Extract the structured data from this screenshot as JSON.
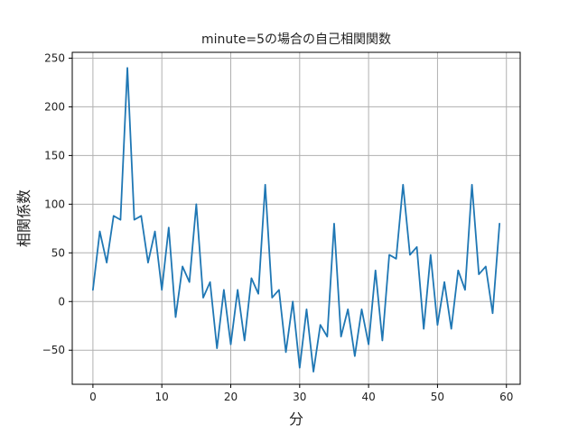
{
  "chart_data": {
    "type": "line",
    "title": "minute=5の場合の自己相関関数",
    "xlabel": "分",
    "ylabel": "相関係数",
    "xlim": [
      -3,
      62
    ],
    "ylim": [
      -85,
      256
    ],
    "xticks": [
      0,
      10,
      20,
      30,
      40,
      50,
      60
    ],
    "yticks": [
      -50,
      0,
      50,
      100,
      150,
      200,
      250
    ],
    "grid": true,
    "line_color": "#1f77b4",
    "series": [
      {
        "x": [
          0,
          1,
          2,
          3,
          4,
          5,
          6,
          7,
          8,
          9,
          10,
          11,
          12,
          13,
          14,
          15,
          16,
          17,
          18,
          19,
          20,
          21,
          22,
          23,
          24,
          25,
          26,
          27,
          28,
          29,
          30,
          31,
          32,
          33,
          34,
          35,
          36,
          37,
          38,
          39,
          40,
          41,
          42,
          43,
          44,
          45,
          46,
          47,
          48,
          49,
          50,
          51,
          52,
          53,
          54,
          55,
          56,
          57,
          58,
          59
        ],
        "values": [
          12,
          72,
          40,
          88,
          84,
          240,
          84,
          88,
          40,
          72,
          12,
          76,
          -16,
          36,
          20,
          100,
          4,
          20,
          -48,
          12,
          -44,
          12,
          -40,
          24,
          8,
          120,
          4,
          12,
          -52,
          0,
          -68,
          -8,
          -72,
          -24,
          -36,
          80,
          -36,
          -8,
          -56,
          -8,
          -44,
          32,
          -40,
          48,
          44,
          120,
          48,
          56,
          -28,
          48,
          -24,
          20,
          -28,
          32,
          12,
          120,
          28,
          36,
          -12,
          80
        ]
      }
    ]
  }
}
